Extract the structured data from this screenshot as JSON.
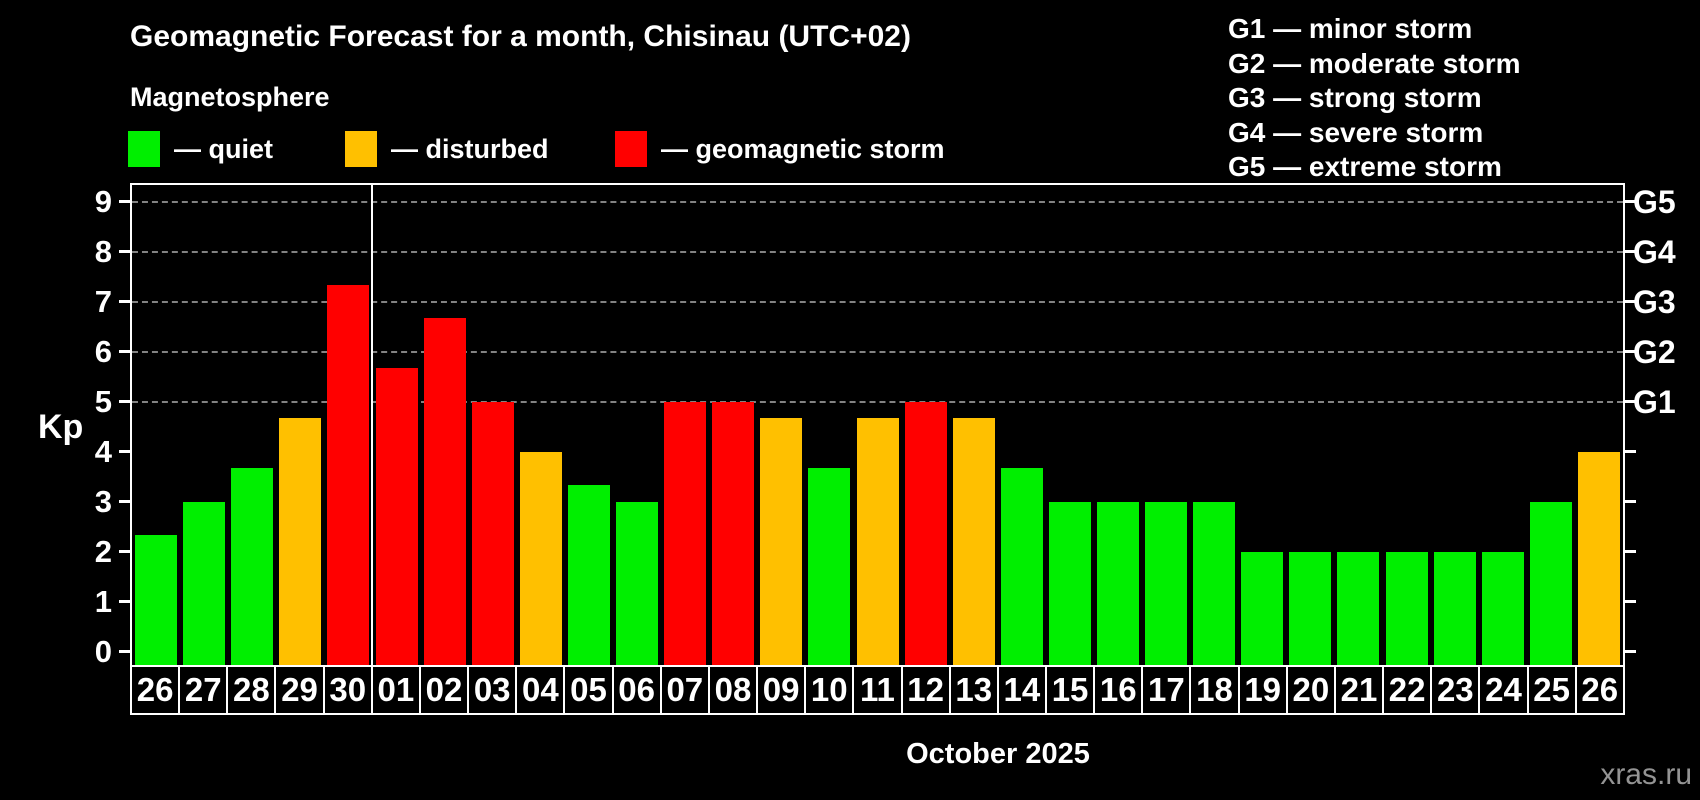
{
  "header": {
    "title": "Geomagnetic Forecast for a month, Chisinau (UTC+02)",
    "subtitle": "Magnetosphere"
  },
  "legend": {
    "items": [
      {
        "label": "— quiet",
        "status": "quiet",
        "color": "#00ef00"
      },
      {
        "label": "— disturbed",
        "status": "disturbed",
        "color": "#ffc000"
      },
      {
        "label": "— geomagnetic storm",
        "status": "storm",
        "color": "#ff0000"
      }
    ]
  },
  "g_legend": {
    "items": [
      "G1 — minor storm",
      "G2 — moderate storm",
      "G3 — strong storm",
      "G4 — severe storm",
      "G5 — extreme storm"
    ]
  },
  "chart_data": {
    "type": "bar",
    "title": "Geomagnetic Forecast for a month, Chisinau (UTC+02)",
    "subtitle": "Magnetosphere",
    "ylabel": "Kp",
    "xlabel": "October 2025",
    "ylim": [
      -0.27,
      9.33
    ],
    "yticks": [
      0,
      1,
      2,
      3,
      4,
      5,
      6,
      7,
      8,
      9
    ],
    "gridlines_at": [
      5,
      6,
      7,
      8,
      9
    ],
    "grid_style": "dashed",
    "right_axis": [
      {
        "kp": 5,
        "label": "G1"
      },
      {
        "kp": 6,
        "label": "G2"
      },
      {
        "kp": 7,
        "label": "G3"
      },
      {
        "kp": 8,
        "label": "G4"
      },
      {
        "kp": 9,
        "label": "G5"
      }
    ],
    "month_separator_slot": 5,
    "categories": [
      "26",
      "27",
      "28",
      "29",
      "30",
      "01",
      "02",
      "03",
      "04",
      "05",
      "06",
      "07",
      "08",
      "09",
      "10",
      "11",
      "12",
      "13",
      "14",
      "15",
      "16",
      "17",
      "18",
      "19",
      "20",
      "21",
      "22",
      "23",
      "24",
      "25",
      "26"
    ],
    "values": [
      2.33,
      3,
      3.67,
      4.67,
      7.33,
      5.67,
      6.67,
      5,
      4,
      3.33,
      3,
      5,
      5,
      4.67,
      3.67,
      4.67,
      5,
      4.67,
      3.67,
      3,
      3,
      3,
      3,
      2,
      2,
      2,
      2,
      2,
      2,
      3,
      4
    ],
    "statuses": [
      "quiet",
      "quiet",
      "quiet",
      "disturbed",
      "storm",
      "storm",
      "storm",
      "storm",
      "disturbed",
      "quiet",
      "quiet",
      "storm",
      "storm",
      "disturbed",
      "quiet",
      "disturbed",
      "storm",
      "disturbed",
      "quiet",
      "quiet",
      "quiet",
      "quiet",
      "quiet",
      "quiet",
      "quiet",
      "quiet",
      "quiet",
      "quiet",
      "quiet",
      "quiet",
      "disturbed"
    ]
  },
  "footer": {
    "xlabel": "October 2025",
    "watermark": "xras.ru"
  },
  "colors": {
    "quiet": "#00ef00",
    "disturbed": "#ffc000",
    "storm": "#ff0000",
    "background": "#000000",
    "text": "#ffffff",
    "grid": "#9a9a9a",
    "frame": "#ffffff",
    "watermark": "#949494"
  }
}
